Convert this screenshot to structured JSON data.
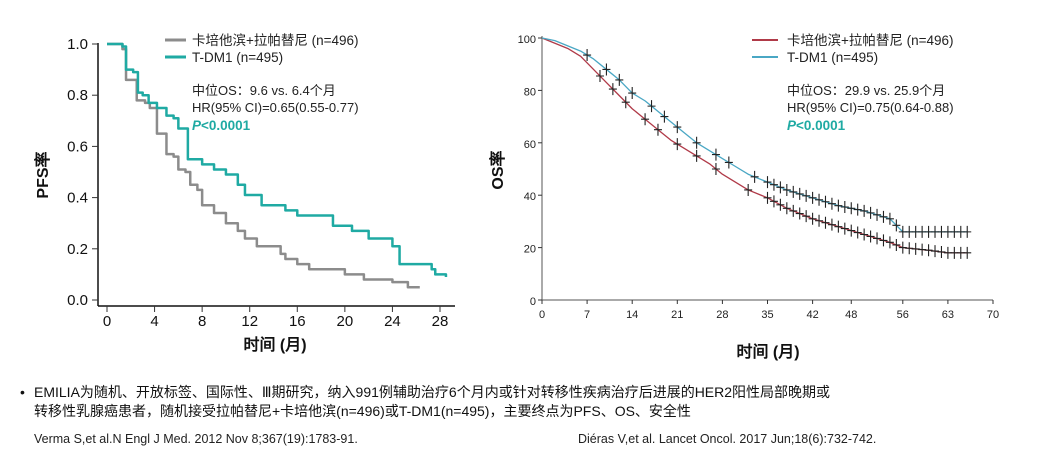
{
  "chart_data": [
    {
      "type": "line",
      "name": "pfs",
      "ylabel": "PFS率",
      "xlabel": "时间 (月)",
      "xlim": [
        0,
        28
      ],
      "ylim": [
        0,
        1
      ],
      "x_ticks": [
        0,
        4,
        8,
        12,
        16,
        20,
        24,
        28
      ],
      "y_ticks": [
        0.0,
        0.2,
        0.4,
        0.6,
        0.8,
        1.0
      ],
      "y_tick_labels": [
        "0.0",
        "0.2",
        "0.4",
        "0.6",
        "0.8",
        "1.0"
      ],
      "series": [
        {
          "name": "卡培他滨+拉帕替尼 (n=496)",
          "color": "#8c8c8c",
          "points": [
            [
              0,
              1.0
            ],
            [
              1.3,
              0.98
            ],
            [
              1.6,
              0.86
            ],
            [
              2.2,
              0.86
            ],
            [
              2.5,
              0.78
            ],
            [
              3.2,
              0.77
            ],
            [
              3.6,
              0.75
            ],
            [
              4.2,
              0.65
            ],
            [
              4.6,
              0.65
            ],
            [
              5.0,
              0.57
            ],
            [
              5.6,
              0.56
            ],
            [
              6.0,
              0.51
            ],
            [
              6.6,
              0.5
            ],
            [
              7.0,
              0.45
            ],
            [
              7.6,
              0.43
            ],
            [
              8.0,
              0.37
            ],
            [
              9.0,
              0.34
            ],
            [
              10.0,
              0.3
            ],
            [
              11.0,
              0.27
            ],
            [
              11.6,
              0.24
            ],
            [
              12.6,
              0.21
            ],
            [
              14.6,
              0.18
            ],
            [
              15.0,
              0.16
            ],
            [
              16.0,
              0.14
            ],
            [
              17.0,
              0.12
            ],
            [
              20.0,
              0.1
            ],
            [
              21.6,
              0.08
            ],
            [
              24.0,
              0.07
            ],
            [
              25.3,
              0.05
            ],
            [
              26.3,
              0.05
            ]
          ]
        },
        {
          "name": "T-DM1 (n=495)",
          "color": "#1faaa3",
          "points": [
            [
              0,
              1.0
            ],
            [
              1.3,
              0.99
            ],
            [
              1.6,
              0.9
            ],
            [
              2.2,
              0.89
            ],
            [
              2.6,
              0.81
            ],
            [
              3.0,
              0.8
            ],
            [
              3.5,
              0.77
            ],
            [
              4.2,
              0.75
            ],
            [
              5.0,
              0.72
            ],
            [
              5.6,
              0.71
            ],
            [
              6.0,
              0.67
            ],
            [
              6.8,
              0.55
            ],
            [
              7.6,
              0.55
            ],
            [
              8.0,
              0.53
            ],
            [
              9.0,
              0.51
            ],
            [
              10.0,
              0.49
            ],
            [
              11.0,
              0.45
            ],
            [
              11.6,
              0.41
            ],
            [
              13.0,
              0.37
            ],
            [
              15.0,
              0.35
            ],
            [
              16.0,
              0.33
            ],
            [
              19.0,
              0.29
            ],
            [
              20.6,
              0.27
            ],
            [
              22.0,
              0.24
            ],
            [
              24.0,
              0.21
            ],
            [
              24.6,
              0.14
            ],
            [
              27.3,
              0.12
            ],
            [
              27.6,
              0.1
            ],
            [
              28.5,
              0.09
            ]
          ]
        }
      ],
      "annotations": {
        "median": "中位OS：9.6 vs. 6.4个月",
        "hr": "HR(95% CI)=0.65(0.55-0.77)",
        "p_prefix": "P",
        "p_value": "<0.0001"
      }
    },
    {
      "type": "line",
      "name": "os",
      "ylabel": "OS率",
      "xlabel": "时间 (月)",
      "xlim": [
        0,
        70
      ],
      "ylim": [
        0,
        100
      ],
      "x_ticks": [
        0,
        7,
        14,
        21,
        28,
        35,
        42,
        48,
        56,
        63,
        70
      ],
      "y_ticks": [
        0,
        20,
        40,
        60,
        80,
        100
      ],
      "y_tick_labels": [
        "0",
        "20",
        "40",
        "60",
        "80",
        "100"
      ],
      "series": [
        {
          "name": "卡培他滨+拉帕替尼 (n=496)",
          "color": "#b03a48",
          "points": [
            [
              0,
              100
            ],
            [
              2,
              98
            ],
            [
              4,
              96
            ],
            [
              6,
              93
            ],
            [
              8,
              88
            ],
            [
              10,
              83
            ],
            [
              12,
              78
            ],
            [
              14,
              73
            ],
            [
              16,
              69
            ],
            [
              18,
              65
            ],
            [
              20,
              61
            ],
            [
              22,
              58
            ],
            [
              24,
              55
            ],
            [
              26,
              52
            ],
            [
              28,
              48
            ],
            [
              30,
              45
            ],
            [
              32,
              42
            ],
            [
              35,
              39
            ],
            [
              38,
              35
            ],
            [
              42,
              31
            ],
            [
              46,
              28
            ],
            [
              50,
              25
            ],
            [
              54,
              22
            ],
            [
              56,
              20
            ],
            [
              60,
              19
            ],
            [
              63,
              18
            ],
            [
              66,
              18
            ]
          ]
        },
        {
          "name": "T-DM1 (n=495)",
          "color": "#4aa7c4",
          "points": [
            [
              0,
              100
            ],
            [
              2,
              99
            ],
            [
              4,
              97
            ],
            [
              6,
              95
            ],
            [
              8,
              92
            ],
            [
              10,
              88
            ],
            [
              12,
              84
            ],
            [
              14,
              79
            ],
            [
              16,
              76
            ],
            [
              18,
              72
            ],
            [
              20,
              68
            ],
            [
              22,
              64
            ],
            [
              24,
              60
            ],
            [
              26,
              57
            ],
            [
              28,
              54
            ],
            [
              30,
              51
            ],
            [
              32,
              48
            ],
            [
              35,
              45
            ],
            [
              38,
              42
            ],
            [
              42,
              39
            ],
            [
              46,
              36
            ],
            [
              50,
              34
            ],
            [
              54,
              31
            ],
            [
              56,
              26
            ],
            [
              60,
              26
            ],
            [
              63,
              26
            ],
            [
              66,
              26
            ]
          ]
        }
      ],
      "censor_marks": {
        "cap_lap": [
          9,
          11,
          13,
          16,
          18,
          21,
          24,
          27,
          32,
          35,
          36,
          37,
          38,
          39,
          40,
          41,
          42,
          43,
          44,
          45,
          46,
          47,
          48,
          49,
          50,
          51,
          52,
          53,
          54,
          55,
          56,
          57,
          58,
          59,
          60,
          61,
          62,
          63,
          64,
          65,
          66
        ],
        "tdm1": [
          7,
          10,
          12,
          14,
          17,
          19,
          21,
          24,
          27,
          29,
          33,
          35,
          36,
          37,
          38,
          39,
          40,
          41,
          42,
          43,
          44,
          45,
          46,
          47,
          48,
          49,
          50,
          51,
          52,
          53,
          54,
          55,
          56,
          57,
          58,
          59,
          60,
          61,
          62,
          63,
          64,
          65,
          66
        ]
      },
      "annotations": {
        "median": "中位OS：29.9 vs. 25.9个月",
        "hr": "HR(95% CI)=0.75(0.64-0.88)",
        "p_prefix": "P",
        "p_value": "<0.0001"
      }
    }
  ],
  "footnote": {
    "bullet": "•",
    "line1": "EMILIA为随机、开放标签、国际性、Ⅲ期研究，纳入991例辅助治疗6个月内或针对转移性疾病治疗后进展的HER2阳性局部晚期或",
    "line2": "转移性乳腺癌患者，随机接受拉帕替尼+卡培他滨(n=496)或T-DM1(n=495)，主要终点为PFS、OS、安全性"
  },
  "references": {
    "left": "Verma S,et al.N Engl J Med. 2012 Nov 8;367(19):1783-91.",
    "right": "Diéras V,et al. Lancet Oncol. 2017 Jun;18(6):732-742."
  }
}
